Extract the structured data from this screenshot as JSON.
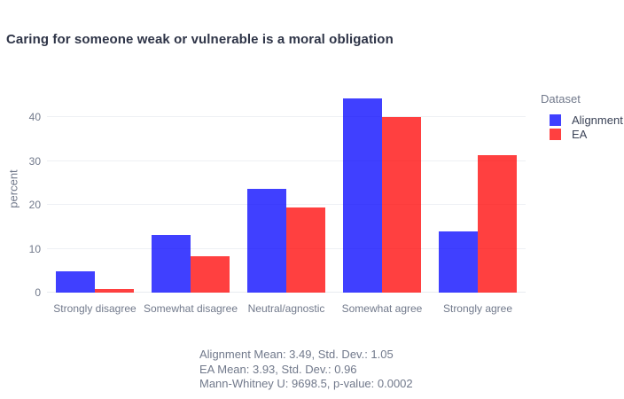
{
  "title": "Caring for someone weak or vulnerable is a moral obligation",
  "chart_data": {
    "type": "bar",
    "barmode": "group",
    "title": "Caring for someone weak or vulnerable is a moral obligation",
    "categories": [
      "Strongly disagree",
      "Somewhat disagree",
      "Neutral/agnostic",
      "Somewhat agree",
      "Strongly agree"
    ],
    "series": [
      {
        "name": "Alignment",
        "color": "#0000ff",
        "opacity": 0.75,
        "values": [
          4.9,
          13.1,
          23.7,
          44.3,
          14.0
        ]
      },
      {
        "name": "EA",
        "color": "#ff0000",
        "opacity": 0.75,
        "values": [
          0.9,
          8.2,
          19.4,
          40.1,
          31.4
        ]
      }
    ],
    "xlabel": "",
    "ylabel": "percent",
    "yticks": [
      0,
      10,
      20,
      30,
      40
    ],
    "ylim": [
      0,
      48.5
    ],
    "grid": true,
    "legend_position": "top-right"
  },
  "legend": {
    "title": "Dataset",
    "items": [
      {
        "label": "Alignment",
        "color": "#0000ff",
        "opacity": 0.75
      },
      {
        "label": "EA",
        "color": "#ff0000",
        "opacity": 0.75
      }
    ]
  },
  "stats": {
    "lines": [
      "Alignment Mean: 3.49, Std. Dev.: 1.05",
      "EA Mean: 3.93, Std. Dev.: 0.96",
      "Mann-Whitney U: 9698.5, p-value: 0.0002"
    ]
  },
  "colors": {
    "title_text": "#2e3447",
    "axis_text": "#71798b",
    "legend_item_text": "#3b4357",
    "grid": "#eef0f4",
    "zero_line": "#e8ebf0",
    "blue_displayed": "#4040ff",
    "red_displayed": "#ff4040"
  }
}
